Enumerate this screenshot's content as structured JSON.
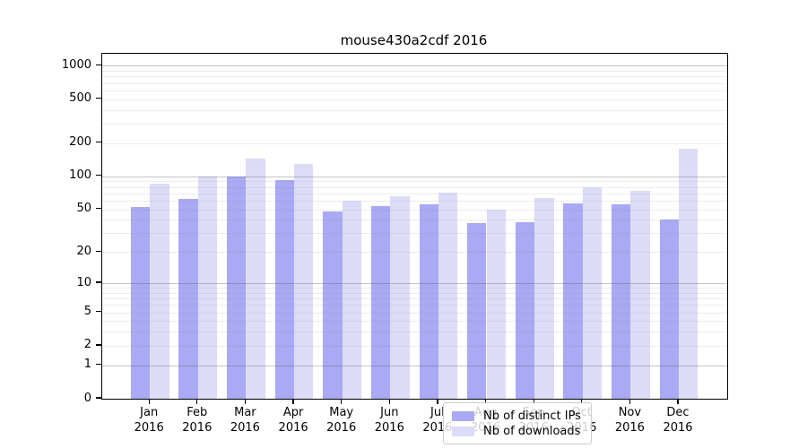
{
  "figure": {
    "title": "mouse430a2cdf 2016"
  },
  "chart_data": {
    "type": "bar",
    "title": "mouse430a2cdf 2016",
    "categories": [
      "Jan",
      "Feb",
      "Mar",
      "Apr",
      "May",
      "Jun",
      "Jul",
      "Aug",
      "Sep",
      "Oct",
      "Nov",
      "Dec"
    ],
    "category_year": "2016",
    "series": [
      {
        "name": "Nb of distinct IPs",
        "color": "#a9a9f4",
        "values": [
          52,
          62,
          100,
          93,
          48,
          53,
          55,
          37,
          38,
          57,
          56,
          40
        ]
      },
      {
        "name": "Nb of downloads",
        "color": "#dcdcf8",
        "values": [
          85,
          100,
          145,
          130,
          60,
          66,
          71,
          50,
          63,
          79,
          74,
          178
        ]
      }
    ],
    "y_ticks": [
      0,
      1,
      2,
      5,
      10,
      20,
      50,
      100,
      200,
      500,
      1000
    ],
    "y_scale": "log10(value+1)",
    "ylim": [
      0,
      1280
    ],
    "grid": "horizontal, major decades darker, minor lighter",
    "legend_position": "lower center inside plot",
    "xlabel": "",
    "ylabel": ""
  }
}
